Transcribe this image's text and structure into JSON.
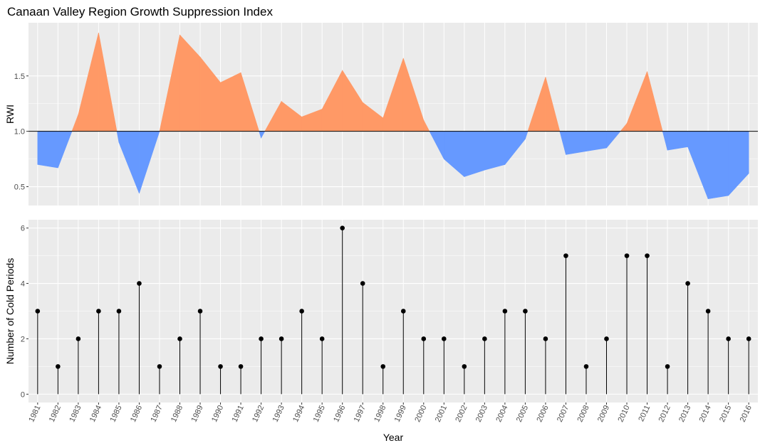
{
  "title": "Canaan Valley Region Growth Suppression Index",
  "colors": {
    "panel": "#ebebeb",
    "above": "#ff9966",
    "below": "#6699ff",
    "line": "#000000"
  },
  "chart_data": [
    {
      "type": "area",
      "ylabel": "RWI",
      "xlabel": "",
      "ylim": [
        0.33,
        1.98
      ],
      "yticks": [
        0.5,
        1.0,
        1.5
      ],
      "ytick_labels": [
        "0.5",
        "1.0",
        "1.5"
      ],
      "baseline": 1.0,
      "x": [
        1981,
        1982,
        1983,
        1984,
        1985,
        1986,
        1987,
        1988,
        1989,
        1990,
        1991,
        1992,
        1993,
        1994,
        1995,
        1996,
        1997,
        1998,
        1999,
        2000,
        2001,
        2002,
        2003,
        2004,
        2005,
        2006,
        2007,
        2008,
        2009,
        2010,
        2011,
        2012,
        2013,
        2014,
        2015,
        2016
      ],
      "series": [
        {
          "values": [
            0.7,
            0.67,
            1.15,
            1.89,
            0.9,
            0.44,
            1.0,
            1.87,
            1.67,
            1.44,
            1.53,
            0.94,
            1.27,
            1.13,
            1.2,
            1.55,
            1.26,
            1.12,
            1.66,
            1.1,
            0.75,
            0.59,
            0.65,
            0.7,
            0.93,
            1.49,
            0.79,
            0.82,
            0.85,
            1.07,
            1.54,
            0.83,
            0.86,
            0.39,
            0.42,
            0.62
          ]
        }
      ]
    },
    {
      "type": "lollipop",
      "ylabel": "Number of Cold Periods",
      "xlabel": "Year",
      "ylim": [
        -0.3,
        6.3
      ],
      "yticks": [
        0,
        2,
        4,
        6
      ],
      "ytick_labels": [
        "0",
        "2",
        "4",
        "6"
      ],
      "categories": [
        "1981",
        "1982",
        "1983",
        "1984",
        "1985",
        "1986",
        "1987",
        "1988",
        "1989",
        "1990",
        "1991",
        "1992",
        "1993",
        "1994",
        "1995",
        "1996",
        "1997",
        "1998",
        "1999",
        "2000",
        "2001",
        "2002",
        "2003",
        "2004",
        "2005",
        "2006",
        "2007",
        "2008",
        "2009",
        "2010",
        "2011",
        "2012",
        "2013",
        "2014",
        "2015",
        "2016"
      ],
      "series": [
        {
          "values": [
            3,
            1,
            2,
            3,
            3,
            4,
            1,
            2,
            3,
            1,
            1,
            2,
            2,
            3,
            2,
            6,
            4,
            1,
            3,
            2,
            2,
            1,
            2,
            3,
            3,
            2,
            5,
            1,
            2,
            5,
            5,
            1,
            4,
            3,
            2,
            2
          ]
        }
      ]
    }
  ]
}
